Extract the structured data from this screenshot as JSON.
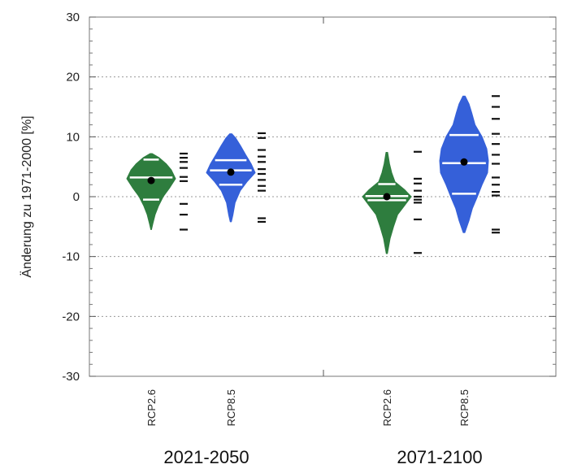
{
  "chart_data": {
    "type": "violin",
    "ylabel": "Änderung zu 1971-2000 [%]",
    "ylim": [
      -30,
      30
    ],
    "yticks": [
      30,
      20,
      10,
      0,
      -10,
      -20,
      -30
    ],
    "y_tick_labels": [
      "30",
      "20",
      "10",
      "0",
      "-10",
      "-20",
      "-30"
    ],
    "grid": true,
    "colors": {
      "RCP2.6": "#2e7d3e",
      "RCP8.5": "#3560d9"
    },
    "periods": [
      {
        "label": "2021-2050"
      },
      {
        "label": "2071-2100"
      }
    ],
    "groups": [
      {
        "period": "2021-2050",
        "scenario": "RCP2.6",
        "min": -5.5,
        "max": 7.2,
        "p17": -0.5,
        "median": 3.2,
        "p83": 6.2,
        "mean": 2.7,
        "members": [
          7.2,
          6.5,
          5.8,
          4.8,
          3.3,
          2.6,
          -1.2,
          -3.0,
          -5.5
        ],
        "profile": [
          [
            -5.5,
            0.1
          ],
          [
            -4.5,
            0.6
          ],
          [
            -3,
            1.4
          ],
          [
            -1.5,
            2.6
          ],
          [
            0,
            4.2
          ],
          [
            1.5,
            6.5
          ],
          [
            3,
            8.5
          ],
          [
            4.5,
            7.0
          ],
          [
            5.5,
            5.2
          ],
          [
            6.5,
            2.8
          ],
          [
            7.2,
            0.4
          ]
        ]
      },
      {
        "period": "2021-2050",
        "scenario": "RCP8.5",
        "min": -4.2,
        "max": 10.5,
        "p17": 2.0,
        "median": 4.4,
        "p83": 6.1,
        "mean": 4.1,
        "members": [
          10.6,
          9.8,
          7.8,
          6.7,
          5.8,
          4.6,
          3.8,
          2.8,
          1.8,
          1.0,
          -3.6,
          -4.2
        ],
        "profile": [
          [
            -4.2,
            0.2
          ],
          [
            -3,
            0.8
          ],
          [
            -1,
            1.6
          ],
          [
            1,
            3.5
          ],
          [
            2.5,
            6.0
          ],
          [
            4,
            9.0
          ],
          [
            5.5,
            7.5
          ],
          [
            7,
            5.5
          ],
          [
            8.5,
            3.6
          ],
          [
            9.8,
            1.8
          ],
          [
            10.5,
            0.4
          ]
        ]
      },
      {
        "period": "2071-2100",
        "scenario": "RCP2.6",
        "min": -9.5,
        "max": 7.4,
        "p17": -0.6,
        "median": 0.1,
        "p83": 2.1,
        "mean": 0.0,
        "members": [
          7.5,
          3.0,
          2.2,
          1.0,
          0.0,
          -0.5,
          -1.0,
          -3.8,
          -9.4
        ],
        "profile": [
          [
            -9.5,
            0.2
          ],
          [
            -7,
            1.2
          ],
          [
            -5,
            2.5
          ],
          [
            -3,
            4.0
          ],
          [
            -1.5,
            6.5
          ],
          [
            0,
            9.0
          ],
          [
            1.2,
            6.5
          ],
          [
            2.5,
            3.0
          ],
          [
            4,
            1.8
          ],
          [
            5.5,
            1.0
          ],
          [
            7.4,
            0.3
          ]
        ]
      },
      {
        "period": "2071-2100",
        "scenario": "RCP8.5",
        "min": -6.0,
        "max": 16.8,
        "p17": 0.5,
        "median": 5.6,
        "p83": 10.3,
        "mean": 5.8,
        "members": [
          16.8,
          15.0,
          13.0,
          10.5,
          8.8,
          7.0,
          5.5,
          3.2,
          2.0,
          0.8,
          0.2,
          -5.5,
          -6.0
        ],
        "profile": [
          [
            -6,
            0.3
          ],
          [
            -4,
            1.8
          ],
          [
            -2,
            3.0
          ],
          [
            0,
            4.8
          ],
          [
            2,
            6.5
          ],
          [
            4,
            8.5
          ],
          [
            6,
            8.8
          ],
          [
            8,
            8.2
          ],
          [
            10,
            6.5
          ],
          [
            12,
            4.0
          ],
          [
            14,
            2.8
          ],
          [
            15.5,
            1.8
          ],
          [
            16.8,
            0.4
          ]
        ]
      }
    ]
  }
}
